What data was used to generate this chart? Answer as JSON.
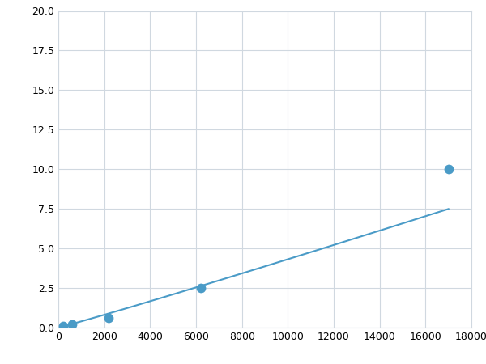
{
  "x_points": [
    200,
    600,
    2200,
    6200,
    17000
  ],
  "y_points": [
    0.1,
    0.2,
    0.6,
    2.5,
    10.0
  ],
  "line_color": "#4a9bc7",
  "marker_color": "#4a9bc7",
  "marker_size": 6,
  "xlim": [
    0,
    18000
  ],
  "ylim": [
    0,
    20
  ],
  "xticks": [
    0,
    2000,
    4000,
    6000,
    8000,
    10000,
    12000,
    14000,
    16000,
    18000
  ],
  "yticks": [
    0.0,
    2.5,
    5.0,
    7.5,
    10.0,
    12.5,
    15.0,
    17.5,
    20.0
  ],
  "grid_color": "#d0d8e0",
  "background_color": "#ffffff",
  "tick_labelsize": 9,
  "figsize": [
    6.0,
    4.5
  ],
  "dpi": 100
}
